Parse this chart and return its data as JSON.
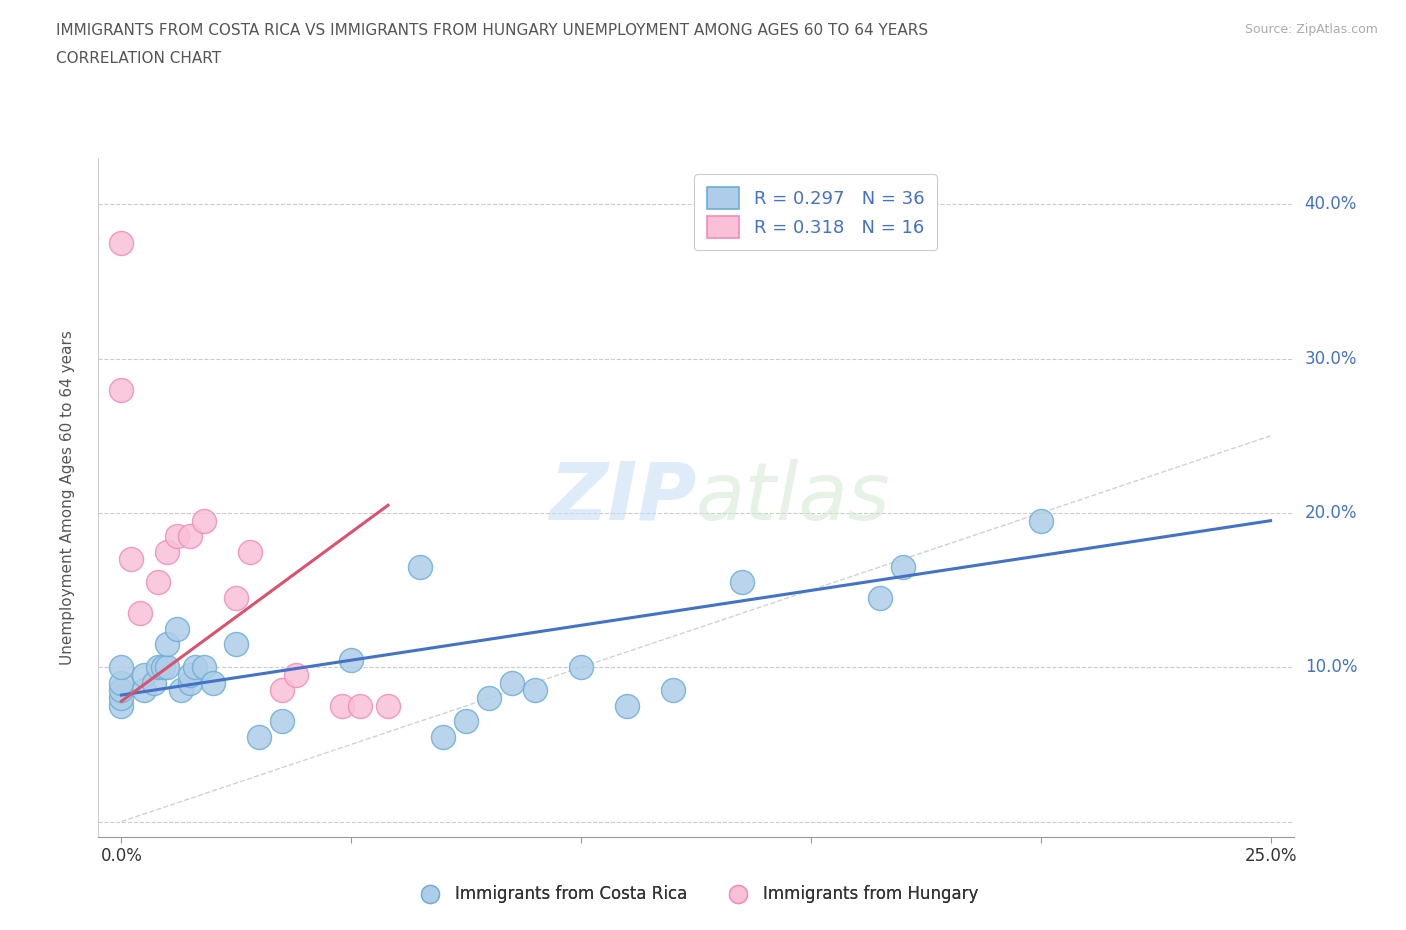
{
  "title_line1": "IMMIGRANTS FROM COSTA RICA VS IMMIGRANTS FROM HUNGARY UNEMPLOYMENT AMONG AGES 60 TO 64 YEARS",
  "title_line2": "CORRELATION CHART",
  "source": "Source: ZipAtlas.com",
  "ylabel": "Unemployment Among Ages 60 to 64 years",
  "xlim": [
    -0.005,
    0.255
  ],
  "ylim": [
    -0.01,
    0.43
  ],
  "xticks": [
    0.0,
    0.05,
    0.1,
    0.15,
    0.2,
    0.25
  ],
  "yticks": [
    0.0,
    0.1,
    0.2,
    0.3,
    0.4
  ],
  "right_ytick_labels": [
    "40.0%",
    "30.0%",
    "20.0%",
    "10.0%"
  ],
  "right_ytick_positions": [
    0.4,
    0.3,
    0.2,
    0.1
  ],
  "watermark": "ZIPatlas",
  "legend_label_cr": "R = 0.297   N = 36",
  "legend_label_hu": "R = 0.318   N = 16",
  "costa_rica_color": "#6baed6",
  "hungary_color": "#f08cba",
  "costa_rica_fill": "#aecde8",
  "hungary_fill": "#f9c0d8",
  "trend_costa_rica_color": "#4472c4",
  "trend_hungary_color": "#d9526e",
  "diagonal_color": "#cccccc",
  "costa_rica_x": [
    0.0,
    0.0,
    0.0,
    0.0,
    0.0,
    0.005,
    0.005,
    0.007,
    0.008,
    0.009,
    0.01,
    0.01,
    0.012,
    0.013,
    0.015,
    0.015,
    0.016,
    0.018,
    0.02,
    0.025,
    0.03,
    0.035,
    0.05,
    0.065,
    0.07,
    0.075,
    0.08,
    0.085,
    0.09,
    0.1,
    0.11,
    0.12,
    0.135,
    0.165,
    0.17,
    0.2
  ],
  "costa_rica_y": [
    0.075,
    0.08,
    0.085,
    0.09,
    0.1,
    0.085,
    0.095,
    0.09,
    0.1,
    0.1,
    0.1,
    0.115,
    0.125,
    0.085,
    0.09,
    0.095,
    0.1,
    0.1,
    0.09,
    0.115,
    0.055,
    0.065,
    0.105,
    0.165,
    0.055,
    0.065,
    0.08,
    0.09,
    0.085,
    0.1,
    0.075,
    0.085,
    0.155,
    0.145,
    0.165,
    0.195
  ],
  "hungary_x": [
    0.0,
    0.0,
    0.002,
    0.004,
    0.008,
    0.01,
    0.012,
    0.015,
    0.018,
    0.025,
    0.028,
    0.035,
    0.038,
    0.048,
    0.052,
    0.058
  ],
  "hungary_y": [
    0.375,
    0.28,
    0.17,
    0.135,
    0.155,
    0.175,
    0.185,
    0.185,
    0.195,
    0.145,
    0.175,
    0.085,
    0.095,
    0.075,
    0.075,
    0.075
  ],
  "trend_cr_x0": 0.0,
  "trend_cr_x1": 0.25,
  "trend_cr_y0": 0.082,
  "trend_cr_y1": 0.195,
  "trend_hu_x0": 0.0,
  "trend_hu_x1": 0.058,
  "trend_hu_y0": 0.078,
  "trend_hu_y1": 0.205
}
